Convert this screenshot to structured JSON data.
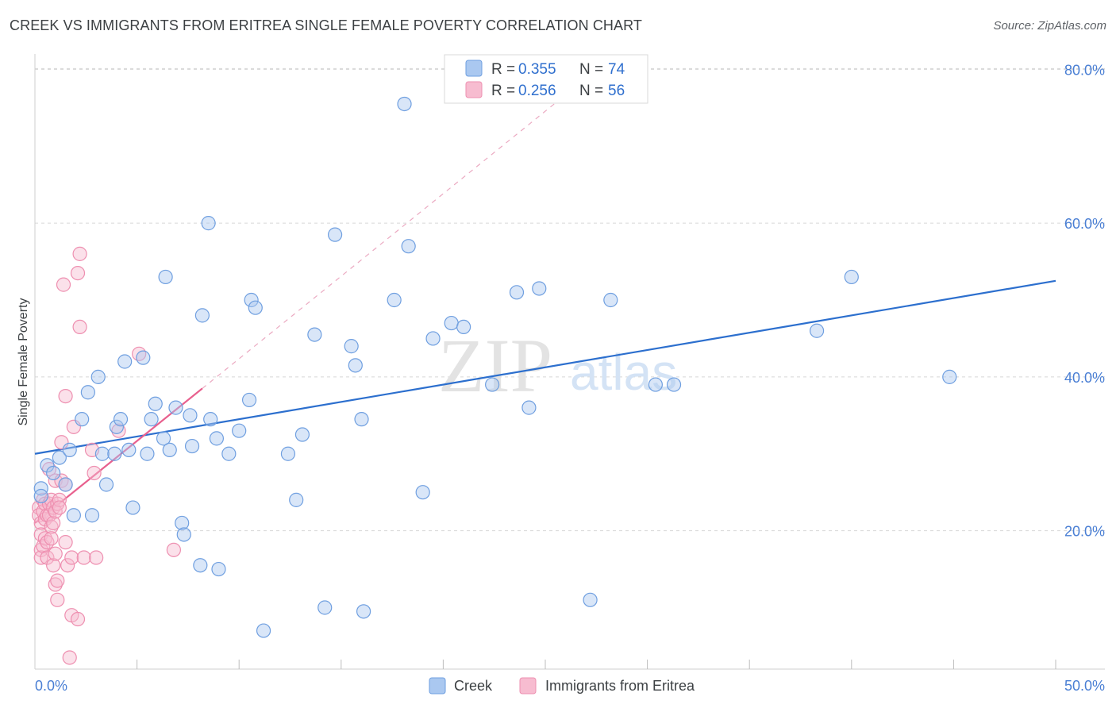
{
  "title": "CREEK VS IMMIGRANTS FROM ERITREA SINGLE FEMALE POVERTY CORRELATION CHART",
  "source": "Source: ZipAtlas.com",
  "watermark": {
    "zip": "ZIP",
    "atlas": "atlas"
  },
  "colors": {
    "creek_fill": "#aac8f0",
    "creek_stroke": "#6f9fe0",
    "creek_line": "#2c6fce",
    "eritrea_fill": "#f7bcd0",
    "eritrea_stroke": "#ee8fb0",
    "eritrea_line": "#e8608e",
    "grid": "#d8d8d8",
    "axis_text": "#4a7fd4"
  },
  "legend": {
    "r_label": "R =",
    "n_label": "N =",
    "rows": [
      {
        "series": "Creek",
        "r": "0.355",
        "n": "74"
      },
      {
        "series": "Immigrants from Eritrea",
        "r": "0.256",
        "n": "56"
      }
    ]
  },
  "chart_data": {
    "type": "scatter",
    "title": "CREEK VS IMMIGRANTS FROM ERITREA SINGLE FEMALE POVERTY CORRELATION CHART",
    "xlabel": "",
    "ylabel": "Single Female Poverty",
    "xlim": [
      0,
      50
    ],
    "ylim": [
      2,
      82
    ],
    "x_tick_labels": [
      "0.0%",
      "50.0%"
    ],
    "y_ticks": [
      20,
      40,
      60,
      80
    ],
    "y_tick_labels": [
      "20.0%",
      "40.0%",
      "60.0%",
      "80.0%"
    ],
    "grid": true,
    "series": [
      {
        "name": "Creek",
        "trend": {
          "x0": 0,
          "y0": 30.0,
          "x1": 50,
          "y1": 52.5,
          "dashed_extension": false
        },
        "points": [
          [
            0.3,
            25.5
          ],
          [
            0.3,
            24.5
          ],
          [
            0.6,
            28.5
          ],
          [
            0.9,
            27.5
          ],
          [
            1.2,
            29.5
          ],
          [
            1.5,
            26.0
          ],
          [
            1.7,
            30.5
          ],
          [
            1.9,
            22.0
          ],
          [
            2.3,
            34.5
          ],
          [
            2.6,
            38.0
          ],
          [
            2.8,
            22.0
          ],
          [
            3.1,
            40.0
          ],
          [
            3.3,
            30.0
          ],
          [
            3.5,
            26.0
          ],
          [
            3.9,
            30.0
          ],
          [
            4.0,
            33.5
          ],
          [
            4.2,
            34.5
          ],
          [
            4.4,
            42.0
          ],
          [
            4.6,
            30.5
          ],
          [
            4.8,
            23.0
          ],
          [
            5.3,
            42.5
          ],
          [
            5.5,
            30.0
          ],
          [
            5.7,
            34.5
          ],
          [
            5.9,
            36.5
          ],
          [
            6.3,
            32.0
          ],
          [
            6.4,
            53.0
          ],
          [
            6.6,
            30.5
          ],
          [
            6.9,
            36.0
          ],
          [
            7.2,
            21.0
          ],
          [
            7.3,
            19.5
          ],
          [
            7.6,
            35.0
          ],
          [
            7.7,
            31.0
          ],
          [
            8.1,
            15.5
          ],
          [
            8.2,
            48.0
          ],
          [
            8.5,
            60.0
          ],
          [
            8.6,
            34.5
          ],
          [
            8.9,
            32.0
          ],
          [
            9.0,
            15.0
          ],
          [
            9.5,
            30.0
          ],
          [
            10.0,
            33.0
          ],
          [
            10.5,
            37.0
          ],
          [
            10.6,
            50.0
          ],
          [
            10.8,
            49.0
          ],
          [
            11.2,
            7.0
          ],
          [
            12.4,
            30.0
          ],
          [
            12.8,
            24.0
          ],
          [
            13.1,
            32.5
          ],
          [
            13.7,
            45.5
          ],
          [
            14.2,
            10.0
          ],
          [
            14.7,
            58.5
          ],
          [
            15.5,
            44.0
          ],
          [
            15.7,
            41.5
          ],
          [
            16.0,
            34.5
          ],
          [
            16.1,
            9.5
          ],
          [
            17.6,
            50.0
          ],
          [
            18.1,
            75.5
          ],
          [
            18.3,
            57.0
          ],
          [
            19.0,
            25.0
          ],
          [
            19.5,
            45.0
          ],
          [
            20.4,
            47.0
          ],
          [
            21.0,
            46.5
          ],
          [
            22.4,
            39.0
          ],
          [
            23.6,
            51.0
          ],
          [
            24.2,
            36.0
          ],
          [
            24.7,
            51.5
          ],
          [
            27.2,
            11.0
          ],
          [
            28.2,
            50.0
          ],
          [
            30.4,
            39.0
          ],
          [
            31.3,
            39.0
          ],
          [
            38.3,
            46.0
          ],
          [
            40.0,
            53.0
          ],
          [
            44.8,
            40.0
          ]
        ]
      },
      {
        "name": "Immigrants from Eritrea",
        "trend": {
          "x0": 0,
          "y0": 21.0,
          "x1": 8.2,
          "y1": 38.5,
          "dashed_to": {
            "x": 28,
            "y": 81
          }
        },
        "points": [
          [
            0.2,
            23.0
          ],
          [
            0.2,
            22.0
          ],
          [
            0.3,
            21.0
          ],
          [
            0.3,
            19.5
          ],
          [
            0.3,
            17.5
          ],
          [
            0.3,
            16.5
          ],
          [
            0.4,
            24.0
          ],
          [
            0.4,
            22.5
          ],
          [
            0.4,
            18.0
          ],
          [
            0.5,
            23.5
          ],
          [
            0.5,
            21.5
          ],
          [
            0.5,
            19.0
          ],
          [
            0.6,
            22.0
          ],
          [
            0.6,
            18.5
          ],
          [
            0.6,
            16.5
          ],
          [
            0.7,
            28.0
          ],
          [
            0.7,
            23.5
          ],
          [
            0.7,
            22.0
          ],
          [
            0.8,
            24.0
          ],
          [
            0.8,
            20.5
          ],
          [
            0.8,
            19.0
          ],
          [
            0.9,
            23.0
          ],
          [
            0.9,
            21.0
          ],
          [
            0.9,
            15.5
          ],
          [
            1.0,
            26.5
          ],
          [
            1.0,
            22.5
          ],
          [
            1.0,
            17.0
          ],
          [
            1.0,
            13.0
          ],
          [
            1.1,
            23.5
          ],
          [
            1.1,
            13.5
          ],
          [
            1.1,
            11.0
          ],
          [
            1.2,
            24.0
          ],
          [
            1.2,
            23.0
          ],
          [
            1.3,
            31.5
          ],
          [
            1.3,
            26.5
          ],
          [
            1.4,
            52.0
          ],
          [
            1.5,
            37.5
          ],
          [
            1.5,
            26.0
          ],
          [
            1.5,
            18.5
          ],
          [
            1.6,
            15.5
          ],
          [
            1.7,
            3.5
          ],
          [
            1.8,
            16.5
          ],
          [
            1.8,
            9.0
          ],
          [
            1.9,
            33.5
          ],
          [
            2.1,
            53.5
          ],
          [
            2.1,
            8.5
          ],
          [
            2.2,
            56.0
          ],
          [
            2.2,
            46.5
          ],
          [
            2.4,
            16.5
          ],
          [
            2.8,
            30.5
          ],
          [
            2.9,
            27.5
          ],
          [
            3.0,
            16.5
          ],
          [
            4.1,
            33.0
          ],
          [
            5.1,
            43.0
          ],
          [
            6.8,
            17.5
          ]
        ]
      }
    ]
  }
}
